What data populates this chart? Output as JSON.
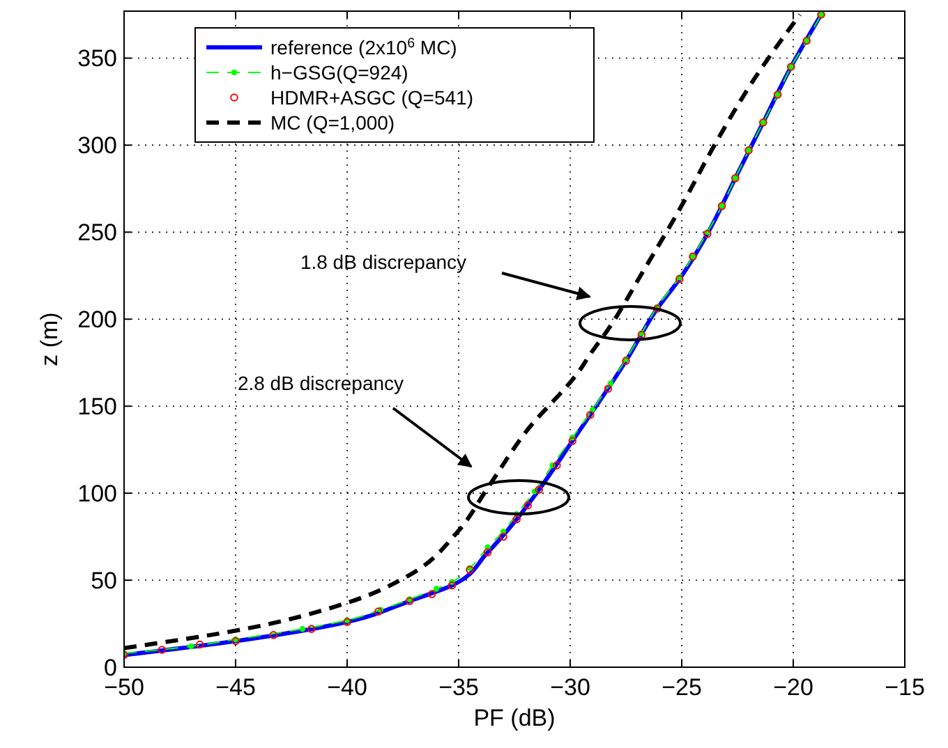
{
  "chart_data": {
    "type": "line",
    "xlabel": "PF (dB)",
    "ylabel": "z (m)",
    "xlim": [
      -50,
      -15
    ],
    "ylim": [
      0,
      377
    ],
    "xticks": [
      -50,
      -45,
      -40,
      -35,
      -30,
      -25,
      -20,
      -15
    ],
    "yticks": [
      0,
      50,
      100,
      150,
      200,
      250,
      300,
      350
    ],
    "grid": true,
    "legend": "top left",
    "series": [
      {
        "name": "reference (2x10$^{6}$ MC)",
        "color": "#0000ff",
        "line_style": "solid",
        "marker": "none",
        "x": [
          -50,
          -45,
          -40,
          -37.2,
          -35.3,
          -33.7,
          -32.4,
          -31.4,
          -29.9,
          -27.5,
          -26.1,
          -25.1,
          -23.85,
          -22.6,
          -21.35,
          -20.1,
          -18.75
        ],
        "values": [
          7,
          15,
          26,
          38,
          47,
          66,
          85,
          102,
          130,
          176,
          206,
          223,
          249,
          281,
          313,
          345,
          375
        ]
      },
      {
        "name": "h−GSG(Q=924)",
        "color": "#00ff00",
        "line_style": "dashed",
        "marker": "circle",
        "x": [
          -50,
          -47,
          -45,
          -42,
          -40,
          -38.5,
          -37.2,
          -36,
          -35.3,
          -34.5,
          -33.7,
          -33,
          -32.4,
          -31.6,
          -30.8,
          -29.9,
          -29,
          -28.2,
          -27.5,
          -26.8,
          -26.1,
          -25.1,
          -24.5,
          -23.85,
          -23.2,
          -22.6,
          -22,
          -21.35,
          -20.7,
          -20.1,
          -19.4,
          -18.75
        ],
        "values": [
          8,
          12,
          16,
          22,
          27,
          33,
          39,
          45,
          49,
          57,
          69,
          78,
          88,
          101,
          116,
          132,
          148,
          163,
          177,
          192,
          207,
          224,
          236,
          250,
          265,
          281,
          297,
          313,
          329,
          345,
          360,
          375
        ]
      },
      {
        "name": "HDMR+ASGC (Q=541)",
        "type": "scatter",
        "color": "#ff0000",
        "marker": "circle",
        "x": [
          -50,
          -48.3,
          -46.6,
          -45,
          -43.3,
          -41.6,
          -40,
          -38.6,
          -37.2,
          -36.2,
          -35.3,
          -34.5,
          -33.7,
          -33,
          -32.4,
          -31.9,
          -31.4,
          -30.6,
          -29.9,
          -29.1,
          -28.3,
          -27.5,
          -26.8,
          -26.1,
          -25.1,
          -24.5,
          -23.85,
          -23.2,
          -22.6,
          -22,
          -21.35,
          -20.7,
          -20.1,
          -19.4,
          -18.75
        ],
        "values": [
          7,
          10,
          13,
          15,
          18.5,
          22,
          26,
          32,
          38,
          42,
          47,
          56,
          66,
          75,
          85,
          93,
          102,
          116,
          130,
          145,
          160,
          176,
          191,
          206,
          223,
          236,
          249,
          265,
          281,
          297,
          313,
          329,
          345,
          360,
          375
        ]
      },
      {
        "name": "MC (Q=1,000)",
        "color": "#000000",
        "line_style": "dashed",
        "marker": "none",
        "x": [
          -50,
          -45,
          -40,
          -37.2,
          -35.1,
          -33.7,
          -32,
          -29.5,
          -29.2,
          -28.2,
          -26.8,
          -25.1,
          -23.4,
          -21.8,
          -19.7
        ],
        "values": [
          11,
          21,
          37,
          53,
          77,
          103,
          135,
          172,
          178,
          196,
          226,
          263,
          303,
          337,
          375
        ]
      }
    ],
    "annotations": [
      "1.8 dB discrepancy",
      "2.8 dB discrepancy"
    ]
  }
}
